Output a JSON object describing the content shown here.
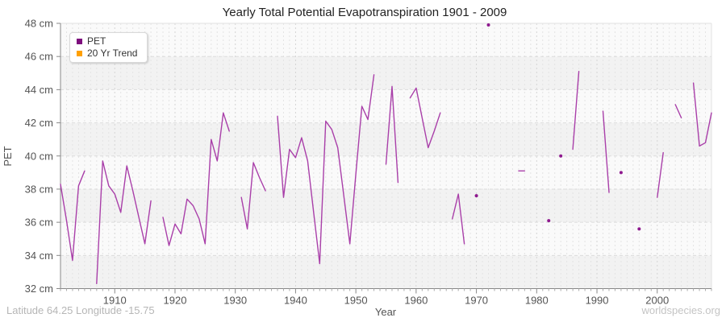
{
  "title": "Yearly Total Potential Evapotranspiration 1901 - 2009",
  "footer": {
    "left": "Latitude 64.25 Longitude -15.75",
    "right": "worldspecies.org"
  },
  "legend": {
    "items": [
      {
        "label": "PET",
        "color": "#7d0e7d"
      },
      {
        "label": "20 Yr Trend",
        "color": "#ffa000"
      }
    ]
  },
  "y_axis": {
    "label": "PET",
    "unit": "cm",
    "min": 32,
    "max": 48,
    "ticks": [
      {
        "value": 48,
        "label": "48 cm"
      },
      {
        "value": 46,
        "label": "46 cm"
      },
      {
        "value": 44,
        "label": "44 cm"
      },
      {
        "value": 42,
        "label": "42 cm"
      },
      {
        "value": 40,
        "label": "40 cm"
      },
      {
        "value": 38,
        "label": "38 cm"
      },
      {
        "value": 36,
        "label": "36 cm"
      },
      {
        "value": 34,
        "label": "34 cm"
      },
      {
        "value": 32,
        "label": "32 cm"
      }
    ]
  },
  "x_axis": {
    "label": "Year",
    "min": 1901,
    "max": 2009,
    "ticks": [
      {
        "value": 1910,
        "label": "1910"
      },
      {
        "value": 1920,
        "label": "1920"
      },
      {
        "value": 1930,
        "label": "1930"
      },
      {
        "value": 1940,
        "label": "1940"
      },
      {
        "value": 1950,
        "label": "1950"
      },
      {
        "value": 1960,
        "label": "1960"
      },
      {
        "value": 1970,
        "label": "1970"
      },
      {
        "value": 1980,
        "label": "1980"
      },
      {
        "value": 1990,
        "label": "1990"
      },
      {
        "value": 2000,
        "label": "2000"
      }
    ]
  },
  "chart_data": {
    "type": "line",
    "title": "Yearly Total Potential Evapotranspiration 1901 - 2009",
    "xlabel": "Year",
    "ylabel": "PET",
    "ylim": [
      32,
      48
    ],
    "xlim": [
      1901,
      2009
    ],
    "grid": "vertical dashed per year, horizontal dashed every 2 cm, alternating shaded bands",
    "legend_position": "top-left",
    "x_start": 1901,
    "x_end": 2009,
    "series": [
      {
        "name": "PET",
        "line_color": "#a93fa9",
        "point_color": "#8e188e",
        "values": [
          38.3,
          36.1,
          33.7,
          38.2,
          39.1,
          null,
          32.3,
          39.7,
          38.2,
          37.7,
          36.6,
          39.4,
          37.9,
          36.3,
          34.7,
          37.3,
          null,
          36.3,
          34.6,
          35.9,
          35.3,
          37.4,
          37.0,
          36.2,
          34.7,
          41.0,
          39.7,
          42.6,
          41.5,
          null,
          37.5,
          35.6,
          39.6,
          38.7,
          37.9,
          null,
          42.4,
          37.5,
          40.4,
          39.9,
          41.1,
          39.7,
          36.6,
          33.5,
          42.1,
          41.6,
          40.5,
          37.6,
          34.7,
          38.9,
          43.0,
          42.2,
          44.9,
          null,
          39.5,
          44.2,
          38.4,
          null,
          43.5,
          44.1,
          42.3,
          40.5,
          41.5,
          42.6,
          null,
          36.2,
          37.7,
          34.7,
          null,
          37.6,
          null,
          47.9,
          null,
          null,
          null,
          null,
          39.1,
          39.1,
          null,
          null,
          null,
          36.1,
          null,
          40.0,
          null,
          40.4,
          45.1,
          null,
          null,
          null,
          42.7,
          37.8,
          null,
          39.0,
          null,
          null,
          35.6,
          null,
          null,
          37.5,
          40.2,
          null,
          43.1,
          42.3,
          null,
          44.4,
          40.6,
          40.8,
          42.6
        ]
      },
      {
        "name": "20 Yr Trend",
        "line_color": "#ffa000",
        "point_color": "#ffa000",
        "values": []
      }
    ]
  },
  "style": {
    "band_dark": "#f2f2f2",
    "band_light": "#fafafa",
    "grid_year": "#e3e3e3",
    "grid_decade": "#d4d4d4",
    "grid_horizontal": "#dcdcdc",
    "axis_color": "#888888",
    "tick_label_color": "#545454",
    "title_color": "#222222",
    "footer_left_color": "#b6b6b6",
    "footer_right_color": "#c4c4c4"
  }
}
